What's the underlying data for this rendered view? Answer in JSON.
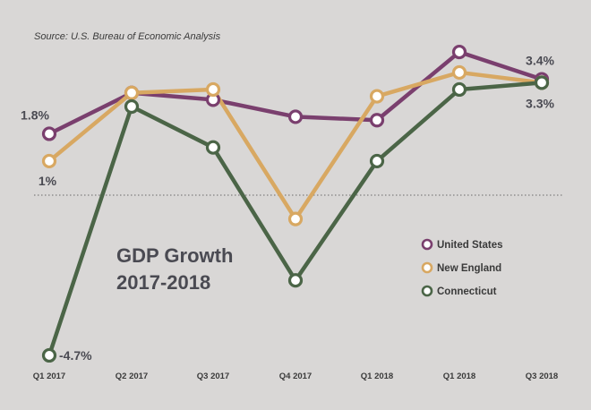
{
  "chart_data": {
    "type": "line",
    "source": "Source: U.S. Bureau of Economic Analysis",
    "title_lines": [
      "GDP Growth",
      "2017-2018"
    ],
    "categories": [
      "Q1 2017",
      "Q2 2017",
      "Q3 2017",
      "Q4 2017",
      "Q1 2018",
      "Q1 2018",
      "Q3 2018"
    ],
    "ylim": [
      -5.2,
      5.2
    ],
    "zero_line": true,
    "legend_position": "right",
    "series": [
      {
        "name": "United States",
        "color": "#7a3f6e",
        "values": [
          1.8,
          3.0,
          2.8,
          2.3,
          2.2,
          4.2,
          3.4
        ]
      },
      {
        "name": "New England",
        "color": "#d8a862",
        "values": [
          1.0,
          3.0,
          3.1,
          -0.7,
          2.9,
          3.6,
          3.3
        ]
      },
      {
        "name": "Connecticut",
        "color": "#4b6547",
        "values": [
          -4.7,
          2.6,
          1.4,
          -2.5,
          1.0,
          3.1,
          3.3
        ]
      }
    ],
    "annotations": [
      {
        "text": "1.8%",
        "series": 0,
        "index": 0
      },
      {
        "text": "1%",
        "series": 1,
        "index": 0
      },
      {
        "text": "-4.7%",
        "series": 2,
        "index": 0
      },
      {
        "text": "3.4%",
        "series": 0,
        "index": 6
      },
      {
        "text": "3.3%",
        "series": 1,
        "index": 6
      }
    ]
  }
}
